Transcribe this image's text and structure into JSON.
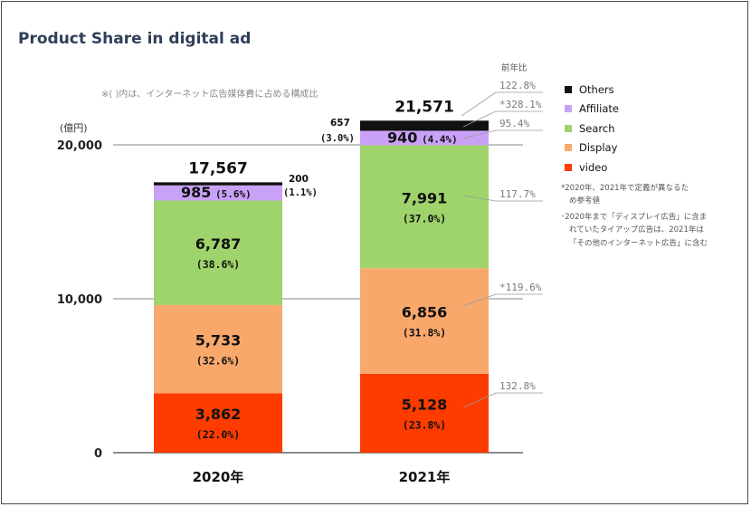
{
  "chart_data": {
    "type": "bar",
    "stacked": true,
    "title": "Product Share in digital ad",
    "note": "※(  )内は、インターネット広告媒体費に占める構成比",
    "unit": "(億円)",
    "categories": [
      "2020年",
      "2021年"
    ],
    "ylim": [
      0,
      22000
    ],
    "yticks": [
      0,
      10000,
      20000
    ],
    "ytick_labels": [
      "0",
      "10,000",
      "20,000"
    ],
    "grid": true,
    "legend_position": "right",
    "series": [
      {
        "name": "video",
        "color": "#ff3c00",
        "values": [
          3862,
          5128
        ],
        "labels": [
          "3,862",
          "5,128"
        ],
        "shares": [
          "(22.0%)",
          "(23.8%)"
        ]
      },
      {
        "name": "Display",
        "color": "#f9a86b",
        "values": [
          5733,
          6856
        ],
        "labels": [
          "5,733",
          "6,856"
        ],
        "shares": [
          "(32.6%)",
          "(31.8%)"
        ]
      },
      {
        "name": "Search",
        "color": "#9fd36b",
        "values": [
          6787,
          7991
        ],
        "labels": [
          "6,787",
          "7,991"
        ],
        "shares": [
          "(38.6%)",
          "(37.0%)"
        ]
      },
      {
        "name": "Affiliate",
        "color": "#c9a2f7",
        "values": [
          985,
          940
        ],
        "labels": [
          "985",
          "940"
        ],
        "shares": [
          "(5.6%)",
          "(4.4%)"
        ]
      },
      {
        "name": "Others",
        "color": "#111111",
        "values": [
          200,
          657
        ],
        "labels": [
          "200",
          "657"
        ],
        "shares": [
          "(1.1%)",
          "(3.0%)"
        ]
      }
    ],
    "legend_order": [
      "Others",
      "Affiliate",
      "Search",
      "Display",
      "video"
    ],
    "totals": [
      "17,567",
      "21,571"
    ],
    "growth_header": "前年比",
    "growth": {
      "total": "122.8%",
      "Others": "*328.1%",
      "Affiliate": "95.4%",
      "Search": "117.7%",
      "Display": "*119.6%",
      "video": "132.8%"
    },
    "footnotes": [
      "*2020年、2021年で定義が異なるた",
      "め参考値",
      "･2020年まで「ディスプレイ広告」に含ま",
      "れていたタイアップ広告は、2021年は",
      "「その他のインターネット広告」に含む"
    ]
  }
}
